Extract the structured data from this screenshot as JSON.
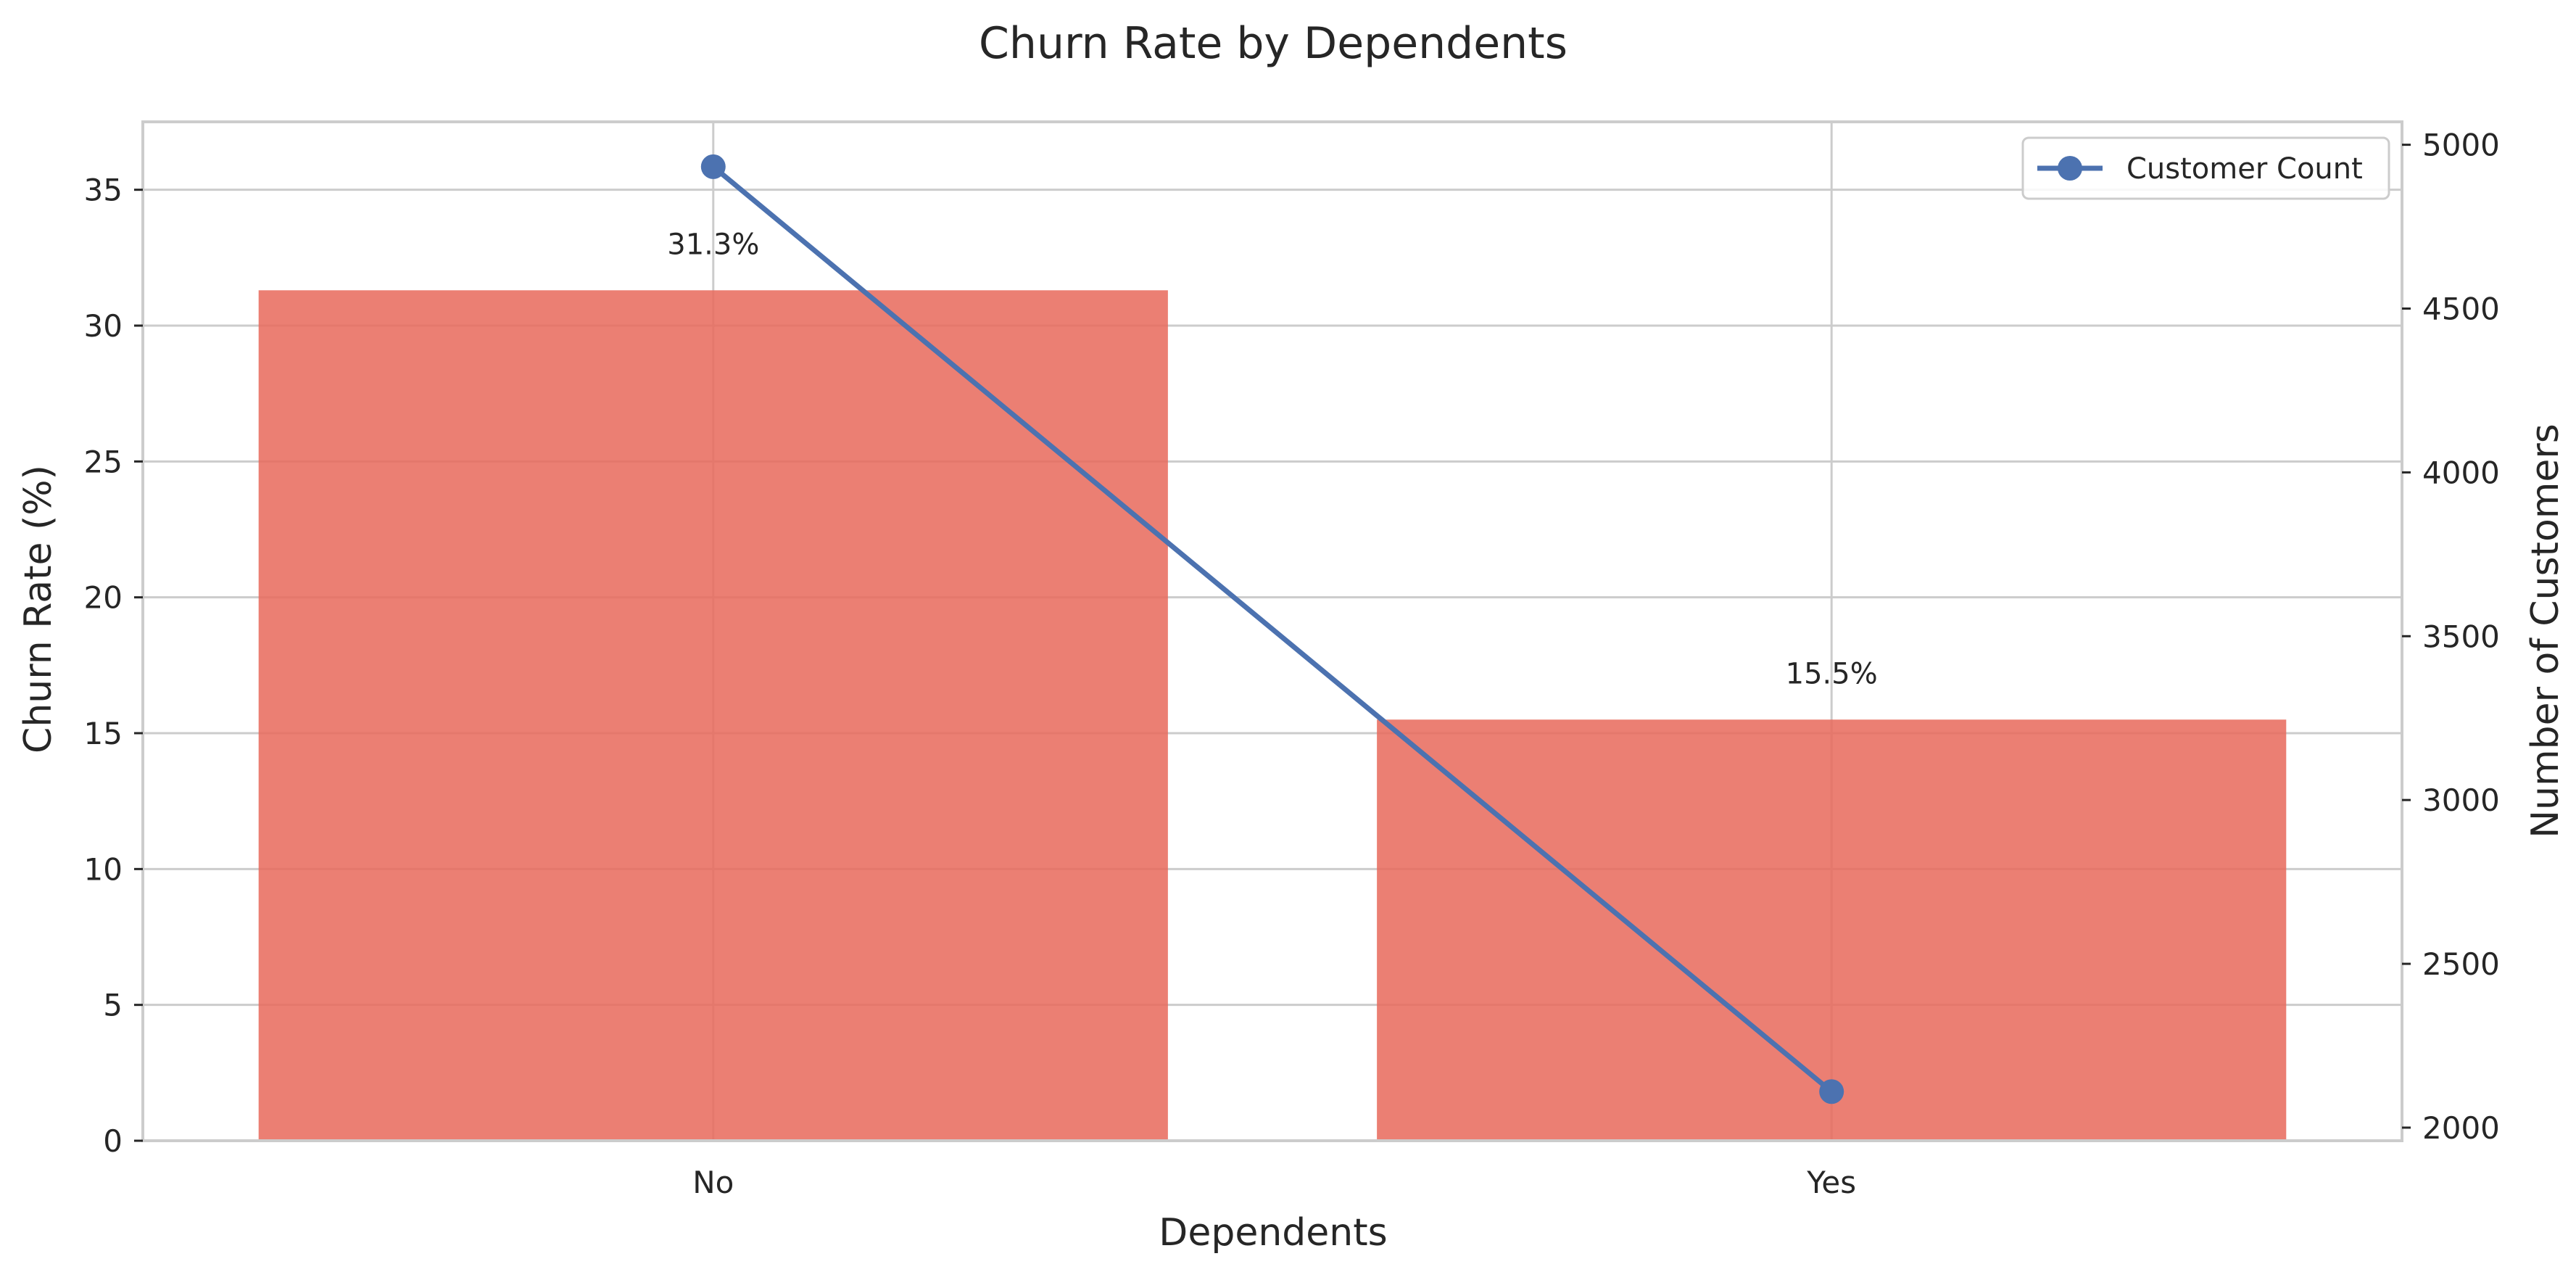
{
  "chart_data": {
    "type": "bar",
    "title": "Churn Rate by Dependents",
    "xlabel": "Dependents",
    "ylabel": "Churn Rate (%)",
    "ylabel_right": "Number of Customers",
    "categories": [
      "No",
      "Yes"
    ],
    "ylim": [
      0,
      37.5
    ],
    "y2lim": [
      1960,
      5070
    ],
    "y_ticks": [
      0,
      5,
      10,
      15,
      20,
      25,
      30,
      35
    ],
    "y2_ticks": [
      2000,
      2500,
      3000,
      3500,
      4000,
      4500,
      5000
    ],
    "grid": true,
    "legend_position": "top-right",
    "series": [
      {
        "type": "bar",
        "axis": "left",
        "values": [
          31.3,
          15.5
        ],
        "data_labels": [
          "31.3%",
          "15.5%"
        ],
        "color": "#E8685A"
      },
      {
        "type": "line",
        "axis": "right",
        "name": "Customer Count",
        "values": [
          4933,
          2110
        ],
        "color": "#4C72B0"
      }
    ]
  }
}
